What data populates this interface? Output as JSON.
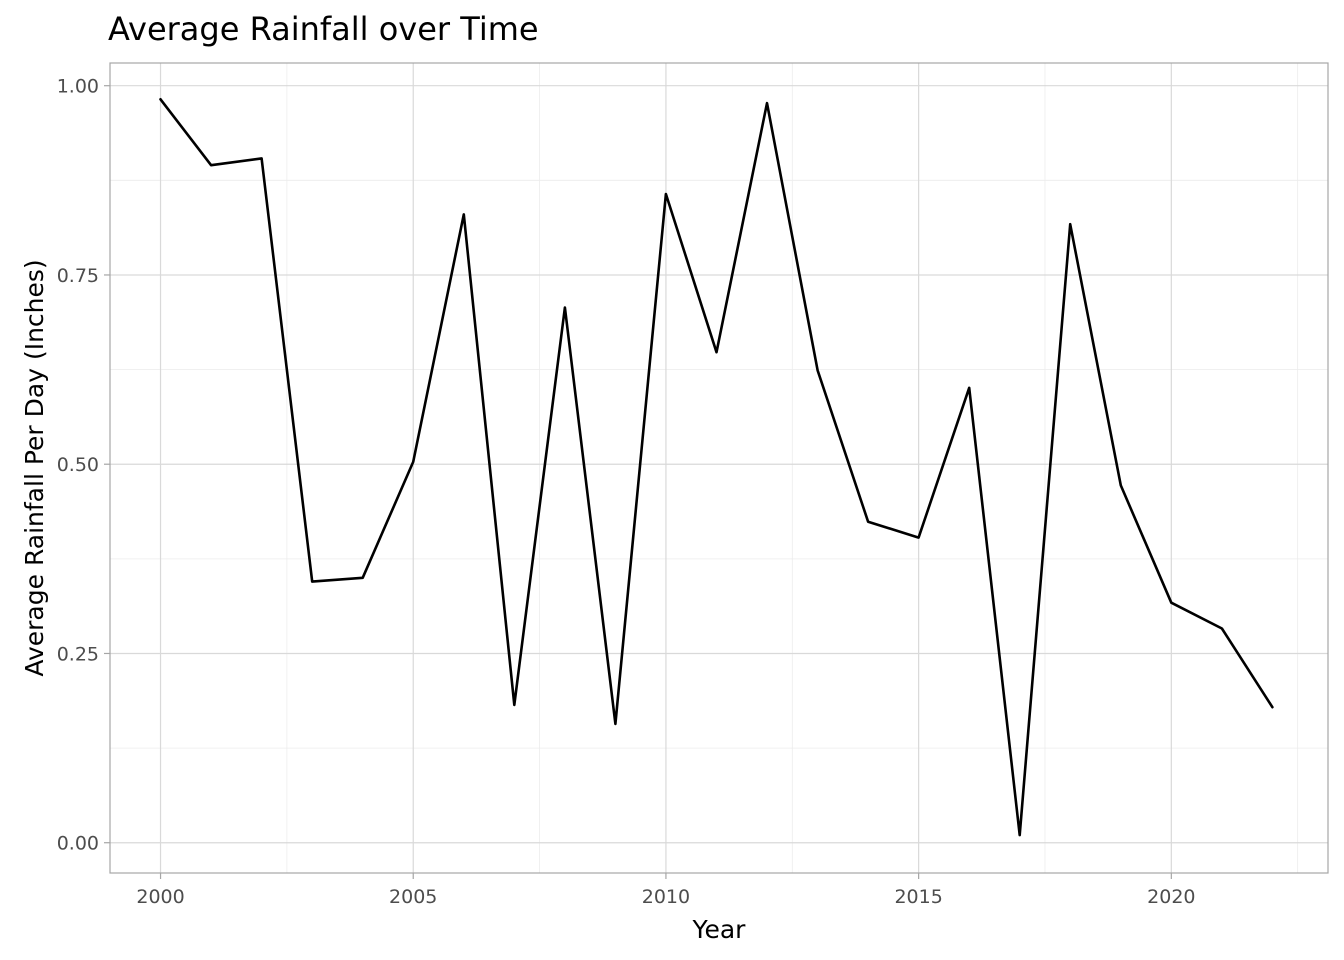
{
  "chart_data": {
    "type": "line",
    "title": "Average Rainfall over Time",
    "xlabel": "Year",
    "ylabel": "Average Rainfall Per Day (Inches)",
    "xlim": [
      1999,
      2023.1
    ],
    "ylim": [
      -0.04,
      1.03
    ],
    "x_ticks": [
      2000,
      2005,
      2010,
      2015,
      2020
    ],
    "x_tick_labels": [
      "2000",
      "2005",
      "2010",
      "2015",
      "2020"
    ],
    "x_minor_ticks": [
      2002.5,
      2007.5,
      2012.5,
      2017.5,
      2022.5
    ],
    "y_ticks": [
      0,
      0.25,
      0.5,
      0.75,
      1
    ],
    "y_tick_labels": [
      "0.00",
      "0.25",
      "0.50",
      "0.75",
      "1.00"
    ],
    "y_minor_ticks": [
      0.125,
      0.375,
      0.625,
      0.875
    ],
    "grid": true,
    "line_color": "#000000",
    "x": [
      2000,
      2001,
      2002,
      2003,
      2004,
      2005,
      2006,
      2007,
      2008,
      2009,
      2010,
      2011,
      2012,
      2013,
      2014,
      2015,
      2016,
      2017,
      2018,
      2019,
      2020,
      2021,
      2022
    ],
    "values": [
      0.982,
      0.895,
      0.904,
      0.345,
      0.35,
      0.503,
      0.83,
      0.182,
      0.707,
      0.157,
      0.857,
      0.648,
      0.977,
      0.624,
      0.424,
      0.403,
      0.601,
      0.01,
      0.817,
      0.472,
      0.317,
      0.283,
      0.179
    ]
  }
}
